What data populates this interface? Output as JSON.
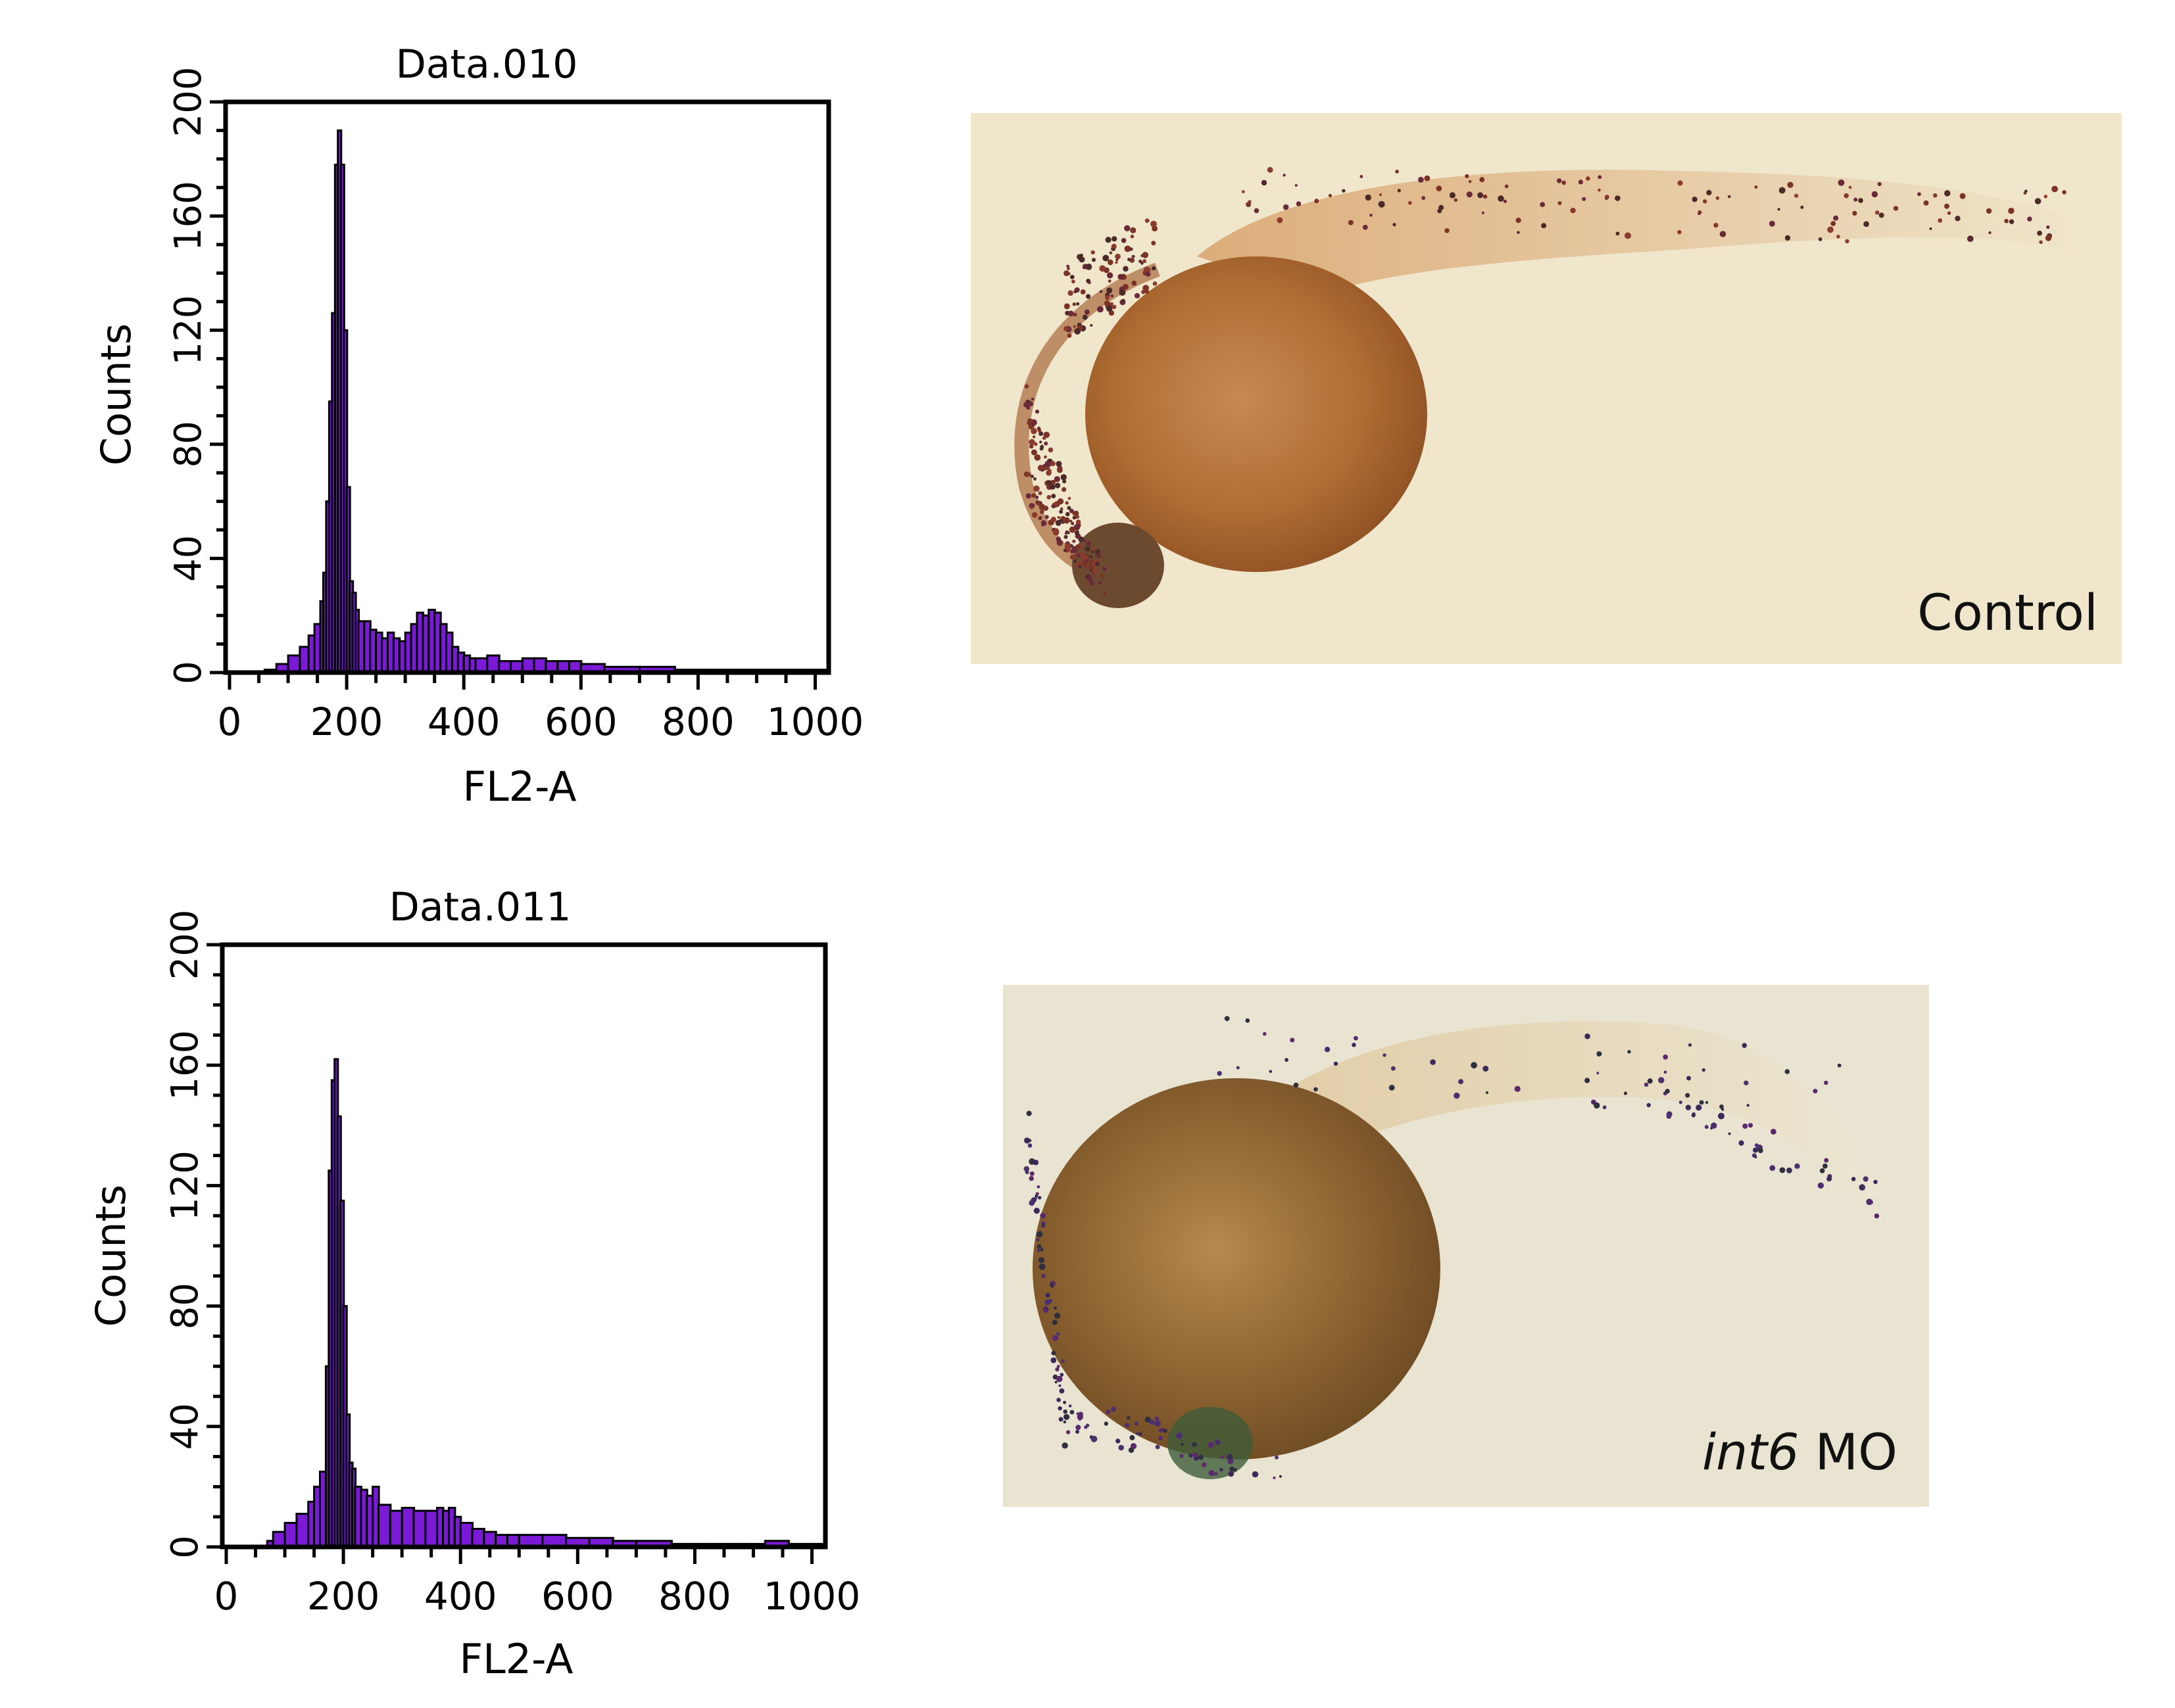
{
  "colors": {
    "fill": "#7a1ad6",
    "outline": "#000000",
    "bg": "#ffffff"
  },
  "chart_data": [
    {
      "type": "area",
      "title": "Data.010",
      "xlabel": "FL2-A",
      "ylabel": "Counts",
      "xlim": [
        0,
        1023
      ],
      "ylim": [
        0,
        200
      ],
      "xticks": [
        "0",
        "200",
        "400",
        "600",
        "800",
        "1000"
      ],
      "yticks": [
        "0",
        "40",
        "80",
        "120",
        "160",
        "200"
      ],
      "x": [
        40,
        60,
        80,
        100,
        120,
        135,
        145,
        155,
        160,
        165,
        170,
        175,
        180,
        185,
        190,
        195,
        200,
        205,
        210,
        215,
        220,
        230,
        240,
        250,
        260,
        270,
        280,
        290,
        300,
        310,
        320,
        330,
        340,
        350,
        360,
        370,
        380,
        390,
        400,
        410,
        420,
        440,
        460,
        480,
        500,
        520,
        540,
        560,
        580,
        600,
        640,
        700,
        760,
        820,
        880,
        940,
        1000,
        1020
      ],
      "values": [
        0,
        1,
        3,
        6,
        9,
        13,
        17,
        25,
        35,
        60,
        95,
        126,
        178,
        190,
        178,
        120,
        65,
        32,
        28,
        22,
        18,
        18,
        15,
        14,
        12,
        14,
        12,
        11,
        14,
        17,
        21,
        20,
        22,
        21,
        17,
        14,
        9,
        7,
        6,
        5,
        5,
        6,
        4,
        4,
        5,
        5,
        4,
        4,
        4,
        3,
        2,
        2,
        1,
        1,
        1,
        1,
        1,
        0
      ]
    },
    {
      "type": "area",
      "title": "Data.011",
      "xlabel": "FL2-A",
      "ylabel": "Counts",
      "xlim": [
        0,
        1023
      ],
      "ylim": [
        0,
        200
      ],
      "xticks": [
        "0",
        "200",
        "400",
        "600",
        "800",
        "1000"
      ],
      "yticks": [
        "0",
        "40",
        "80",
        "120",
        "160",
        "200"
      ],
      "x": [
        60,
        70,
        80,
        100,
        120,
        140,
        150,
        160,
        170,
        175,
        180,
        185,
        190,
        195,
        200,
        205,
        210,
        215,
        220,
        230,
        240,
        250,
        260,
        280,
        300,
        320,
        340,
        360,
        370,
        380,
        390,
        400,
        420,
        440,
        460,
        480,
        500,
        540,
        580,
        620,
        660,
        700,
        760,
        820,
        880,
        920,
        960,
        1000,
        1020
      ],
      "values": [
        0,
        2,
        5,
        8,
        11,
        15,
        20,
        25,
        60,
        125,
        155,
        162,
        143,
        115,
        80,
        44,
        28,
        26,
        20,
        19,
        17,
        20,
        14,
        12,
        13,
        12,
        12,
        13,
        12,
        13,
        10,
        8,
        6,
        5,
        4,
        4,
        4,
        4,
        3,
        3,
        2,
        2,
        1,
        1,
        1,
        2,
        1,
        1,
        0
      ]
    }
  ],
  "photos": [
    {
      "label": "Control"
    },
    {
      "label_italic": "int6",
      "label_rest": " MO"
    }
  ]
}
